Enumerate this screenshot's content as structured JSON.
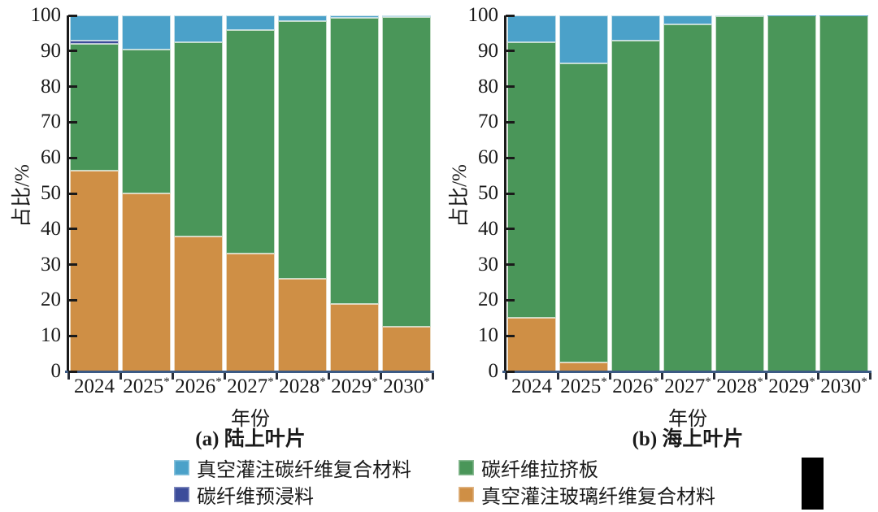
{
  "colors": {
    "vacuum_infusion_carbon": "#4ba1c9",
    "carbon_prepreg": "#3c4c9a",
    "carbon_pultrusion": "#4a9659",
    "vacuum_infusion_glass": "#cf8f45",
    "axis_left": "#1a1a1a",
    "axis_bottom": "#3c5a84",
    "text": "#1a1a1a",
    "redaction_box": "#000000"
  },
  "legend": {
    "items": [
      {
        "label": "真空灌注碳纤维复合材料",
        "color": "#4ba1c9"
      },
      {
        "label": "碳纤维拉挤板",
        "color": "#4a9659"
      },
      {
        "label": "碳纤维预浸料",
        "color": "#3c4c9a"
      },
      {
        "label": "真空灌注玻璃纤维复合材料",
        "color": "#cf8f45"
      }
    ]
  },
  "chart_data": [
    {
      "type": "bar",
      "stacked": true,
      "title": "(a) 陆上叶片",
      "xlabel": "年份",
      "ylabel": "占比/%",
      "ylim": [
        0,
        100
      ],
      "yticks": [
        0,
        10,
        20,
        30,
        40,
        50,
        60,
        70,
        80,
        90,
        100
      ],
      "grid": false,
      "legend_position": "bottom",
      "categories": [
        "2024",
        "2025*",
        "2026*",
        "2027*",
        "2028*",
        "2029*",
        "2030*"
      ],
      "series": [
        {
          "name": "真空灌注玻璃纤维复合材料",
          "color": "#cf8f45",
          "values": [
            56.5,
            50,
            38,
            33,
            26,
            19,
            12.5
          ]
        },
        {
          "name": "碳纤维拉挤板",
          "color": "#4a9659",
          "values": [
            35.5,
            40.5,
            54.5,
            63,
            72.5,
            80.3,
            87
          ]
        },
        {
          "name": "碳纤维预浸料",
          "color": "#3c4c9a",
          "values": [
            1,
            0,
            0,
            0,
            0,
            0,
            0
          ]
        },
        {
          "name": "真空灌注碳纤维复合材料",
          "color": "#4ba1c9",
          "values": [
            7,
            9.5,
            7.5,
            4,
            1.5,
            0.7,
            0.5
          ]
        }
      ]
    },
    {
      "type": "bar",
      "stacked": true,
      "title": "(b) 海上叶片",
      "xlabel": "年份",
      "ylabel": "占比/%",
      "ylim": [
        0,
        100
      ],
      "yticks": [
        0,
        10,
        20,
        30,
        40,
        50,
        60,
        70,
        80,
        90,
        100
      ],
      "grid": false,
      "legend_position": "bottom",
      "categories": [
        "2024",
        "2025*",
        "2026*",
        "2027*",
        "2028*",
        "2029*",
        "2030*"
      ],
      "series": [
        {
          "name": "真空灌注玻璃纤维复合材料",
          "color": "#cf8f45",
          "values": [
            15,
            2.5,
            0,
            0,
            0,
            0,
            0
          ]
        },
        {
          "name": "碳纤维拉挤板",
          "color": "#4a9659",
          "values": [
            77.5,
            84,
            93,
            97.5,
            99.8,
            99.9,
            99.9
          ]
        },
        {
          "name": "碳纤维预浸料",
          "color": "#3c4c9a",
          "values": [
            0,
            0,
            0,
            0,
            0,
            0,
            0
          ]
        },
        {
          "name": "真空灌注碳纤维复合材料",
          "color": "#4ba1c9",
          "values": [
            7.5,
            13.5,
            7,
            2.5,
            0.2,
            0.1,
            0.1
          ]
        }
      ]
    }
  ]
}
